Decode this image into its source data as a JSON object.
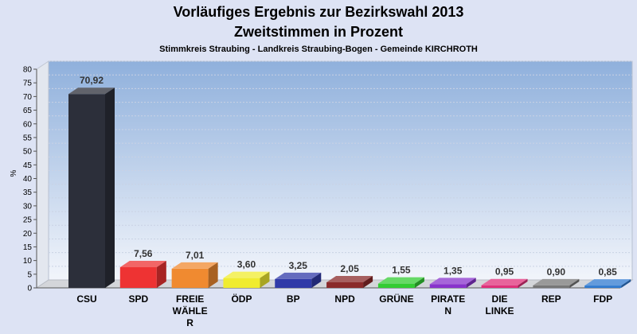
{
  "chart_data": {
    "type": "bar",
    "title": "Vorläufiges Ergebnis zur Bezirkswahl 2013",
    "subtitle_line2": "Zweitstimmen in Prozent",
    "subtitle": "Stimmkreis Straubing - Landkreis Straubing-Bogen - Gemeinde KIRCHROTH",
    "ylabel": "%",
    "xlabel": "",
    "ylim": [
      0,
      80
    ],
    "yticks": [
      "0",
      "5",
      "10",
      "15",
      "20",
      "25",
      "30",
      "35",
      "40",
      "45",
      "50",
      "55",
      "60",
      "65",
      "70",
      "75",
      "80"
    ],
    "grid": true,
    "categories": [
      [
        "CSU"
      ],
      [
        "SPD"
      ],
      [
        "FREIE",
        "WÄHLE",
        "R"
      ],
      [
        "ÖDP"
      ],
      [
        "BP"
      ],
      [
        "NPD"
      ],
      [
        "GRÜNE"
      ],
      [
        "PIRATE",
        "N"
      ],
      [
        "DIE",
        "LINKE"
      ],
      [
        "REP"
      ],
      [
        "FDP"
      ]
    ],
    "values": [
      70.92,
      7.56,
      7.01,
      3.6,
      3.25,
      2.05,
      1.55,
      1.35,
      0.95,
      0.9,
      0.85
    ],
    "value_labels": [
      "70,92",
      "7,56",
      "7,01",
      "3,60",
      "3,25",
      "2,05",
      "1,55",
      "1,35",
      "0,95",
      "0,90",
      "0,85"
    ],
    "colors": [
      "#2c2f3a",
      "#ee3333",
      "#f08a30",
      "#f0ec30",
      "#303aa8",
      "#8a2a2a",
      "#33cc33",
      "#8833cc",
      "#e0307a",
      "#777777",
      "#2f7ad0"
    ]
  }
}
